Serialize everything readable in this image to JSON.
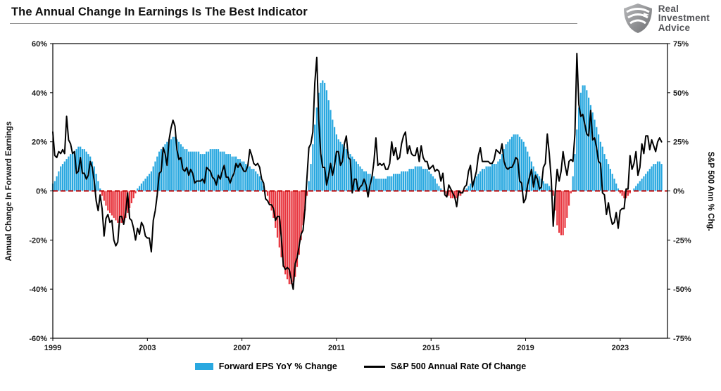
{
  "header": {
    "title": "The Annual Change In Earnings Is The Best Indicator",
    "logo": {
      "line1": "Real",
      "line2": "Investment",
      "line3": "Advice"
    }
  },
  "chart": {
    "left_axis_label": "Annual Change In Forward Earnings",
    "right_axis_label": "S&P 500  Ann % Chg.",
    "left_ticks": [
      "60%",
      "40%",
      "20%",
      "0%",
      "-20%",
      "-40%",
      "-60%"
    ],
    "left_tick_values": [
      60,
      40,
      20,
      0,
      -20,
      -40,
      -60
    ],
    "right_ticks": [
      "75%",
      "50%",
      "25%",
      "0%",
      "-25%",
      "-50%",
      "-75%"
    ],
    "right_tick_values": [
      75,
      50,
      25,
      0,
      -25,
      -50,
      -75
    ],
    "x_ticks": [
      "1999",
      "2003",
      "2007",
      "2011",
      "2015",
      "2019",
      "2023"
    ],
    "colors": {
      "bar_positive": "#29A8E0",
      "bar_negative": "#E8353E",
      "line": "#000000",
      "zero_line": "#C00000"
    }
  },
  "legend": [
    {
      "label": "Forward EPS YoY % Change",
      "swatch": "bar",
      "color": "#29A8E0"
    },
    {
      "label": "S&P 500 Annual Rate Of Change",
      "swatch": "line",
      "color": "#000000"
    }
  ],
  "chart_data": {
    "type": "bar",
    "subtype": "bar+line combo, monthly observations Jan 1999 - Oct 2024",
    "title": "The Annual Change In Earnings Is The Best Indicator",
    "x_start_year": 1999,
    "x_end_year": 2025,
    "x_frequency": "monthly",
    "x_tick_labels": [
      "1999",
      "2003",
      "2007",
      "2011",
      "2015",
      "2019",
      "2023"
    ],
    "left_axis": {
      "label": "Annual Change In Forward Earnings",
      "ylim": [
        -60,
        60
      ],
      "tick_step": 20
    },
    "right_axis": {
      "label": "S&P 500 Ann % Chg.",
      "ylim": [
        -75,
        75
      ],
      "tick_step": 25
    },
    "zero_reference_line": {
      "value": 0,
      "style": "dashed",
      "color": "#C00000"
    },
    "legend_position": "bottom",
    "grid": false,
    "series": [
      {
        "name": "Forward EPS YoY % Change",
        "type": "bar",
        "axis": "left",
        "positive_color": "#29A8E0",
        "negative_color": "#E8353E",
        "values": [
          3,
          4,
          6,
          8,
          10,
          11,
          12,
          13,
          14,
          15,
          16,
          16,
          17,
          18,
          18,
          17,
          17,
          16,
          15,
          14,
          12,
          10,
          7,
          4,
          1,
          -2,
          -4,
          -6,
          -8,
          -9,
          -10,
          -11,
          -12,
          -13,
          -13,
          -13,
          -12,
          -11,
          -9,
          -7,
          -5,
          -3,
          -1,
          1,
          2,
          3,
          4,
          5,
          6,
          7,
          8,
          10,
          12,
          14,
          16,
          17,
          18,
          19,
          20,
          21,
          21,
          22,
          22,
          21,
          20,
          19,
          18,
          17,
          17,
          16,
          16,
          16,
          16,
          16,
          16,
          15,
          15,
          15,
          16,
          16,
          17,
          17,
          17,
          17,
          17,
          16,
          16,
          16,
          15,
          15,
          15,
          14,
          14,
          14,
          13,
          13,
          12,
          12,
          11,
          10,
          10,
          9,
          9,
          8,
          7,
          6,
          4,
          2,
          0,
          -2,
          -5,
          -8,
          -11,
          -15,
          -19,
          -23,
          -27,
          -31,
          -34,
          -36,
          -38,
          -38,
          -37,
          -35,
          -31,
          -26,
          -20,
          -14,
          -8,
          -2,
          4,
          11,
          19,
          27,
          34,
          40,
          44,
          45,
          44,
          41,
          37,
          33,
          29,
          26,
          23,
          21,
          20,
          19,
          18,
          17,
          16,
          15,
          14,
          13,
          12,
          11,
          10,
          9,
          8,
          8,
          7,
          7,
          6,
          6,
          5,
          5,
          5,
          5,
          5,
          5,
          6,
          6,
          6,
          7,
          7,
          7,
          7,
          8,
          8,
          8,
          8,
          9,
          9,
          9,
          10,
          10,
          10,
          10,
          9,
          9,
          9,
          8,
          7,
          6,
          5,
          3,
          2,
          1,
          0,
          -1,
          -2,
          -2,
          -3,
          -3,
          -3,
          -3,
          -2,
          -2,
          -1,
          0,
          1,
          2,
          3,
          4,
          5,
          6,
          7,
          8,
          9,
          9,
          10,
          10,
          10,
          11,
          11,
          11,
          12,
          13,
          15,
          17,
          19,
          20,
          21,
          22,
          23,
          23,
          23,
          22,
          21,
          20,
          18,
          16,
          14,
          12,
          10,
          8,
          7,
          6,
          5,
          4,
          3,
          3,
          2,
          1,
          -2,
          -8,
          -14,
          -17,
          -18,
          -18,
          -15,
          -11,
          -6,
          -1,
          6,
          15,
          25,
          34,
          40,
          43,
          43,
          41,
          38,
          35,
          32,
          29,
          26,
          23,
          20,
          18,
          15,
          13,
          11,
          9,
          7,
          5,
          3,
          1,
          -1,
          -2,
          -3,
          -3,
          -2,
          -1,
          0,
          1,
          2,
          3,
          4,
          5,
          6,
          7,
          8,
          9,
          10,
          11,
          11,
          12,
          12,
          11
        ]
      },
      {
        "name": "S&P 500 Annual Rate Of Change",
        "type": "line",
        "axis": "right",
        "color": "#000000",
        "values": [
          30,
          18,
          17,
          20,
          19,
          21,
          19,
          38,
          26,
          24,
          19,
          20,
          9,
          10,
          17,
          9,
          9,
          6,
          8,
          15,
          12,
          5,
          -5,
          -10,
          -2,
          -9,
          -23,
          -14,
          -12,
          -16,
          -15,
          -25,
          -28,
          -26,
          -13,
          -13,
          -17,
          -11,
          -1,
          -14,
          -15,
          -19,
          -25,
          -19,
          -22,
          -16,
          -18,
          -23,
          -24,
          -24,
          -31,
          -15,
          -10,
          -2,
          9,
          10,
          22,
          19,
          13,
          26,
          32,
          36,
          33,
          21,
          16,
          17,
          11,
          10,
          12,
          8,
          11,
          9,
          4,
          5,
          5,
          5,
          6,
          4,
          12,
          11,
          10,
          7,
          6,
          3,
          8,
          6,
          10,
          13,
          7,
          7,
          4,
          7,
          9,
          14,
          12,
          14,
          12,
          10,
          10,
          13,
          21,
          18,
          14,
          13,
          14,
          12,
          6,
          4,
          -4,
          -5,
          -7,
          -7,
          -9,
          -15,
          -13,
          -13,
          -24,
          -38,
          -40,
          -39,
          -40,
          -45,
          -50,
          -37,
          -34,
          -28,
          -22,
          -20,
          -9,
          7,
          22,
          24,
          30,
          55,
          68,
          36,
          19,
          12,
          12,
          3,
          8,
          14,
          8,
          13,
          20,
          20,
          13,
          15,
          24,
          28,
          17,
          16,
          -1,
          6,
          6,
          0,
          2,
          3,
          6,
          3,
          -3,
          3,
          7,
          15,
          27,
          13,
          14,
          13,
          14,
          11,
          11,
          14,
          25,
          18,
          22,
          16,
          17,
          24,
          28,
          30,
          19,
          23,
          19,
          18,
          18,
          22,
          15,
          23,
          17,
          15,
          15,
          11,
          12,
          13,
          10,
          11,
          10,
          5,
          9,
          -2,
          -3,
          3,
          1,
          -1,
          -3,
          -8,
          0,
          -1,
          -1,
          2,
          3,
          10,
          13,
          2,
          6,
          10,
          18,
          22,
          15,
          15,
          15,
          15,
          14,
          14,
          16,
          21,
          20,
          19,
          24,
          15,
          12,
          11,
          12,
          12,
          14,
          17,
          16,
          5,
          4,
          -6,
          -4,
          3,
          7,
          11,
          2,
          8,
          6,
          1,
          2,
          12,
          14,
          29,
          19,
          6,
          -18,
          -1,
          11,
          5,
          10,
          20,
          13,
          8,
          15,
          16,
          15,
          29,
          70,
          44,
          38,
          39,
          34,
          29,
          28,
          41,
          26,
          27,
          22,
          15,
          14,
          -1,
          -2,
          -12,
          -6,
          -13,
          -17,
          -16,
          -11,
          -19,
          -10,
          -9,
          -9,
          1,
          1,
          18,
          11,
          14,
          20,
          8,
          12,
          24,
          19,
          28,
          28,
          21,
          26,
          23,
          20,
          25,
          27,
          25
        ]
      }
    ]
  }
}
